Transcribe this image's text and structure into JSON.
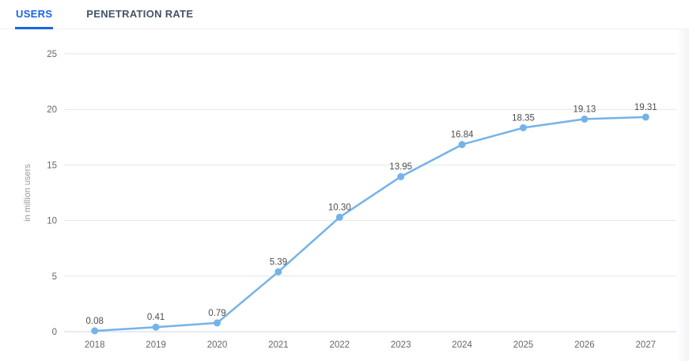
{
  "tabs": [
    {
      "label": "USERS",
      "active": true
    },
    {
      "label": "PENETRATION RATE",
      "active": false
    }
  ],
  "colors": {
    "active_tab": "#1a64e6",
    "inactive_tab": "#445468",
    "line": "#74b3ea",
    "marker": "#74b3ea",
    "gridline": "#e6e6e6",
    "zero_axis_line": "#ccd6eb",
    "tick_label": "#666666",
    "data_label": "#4d4d4d",
    "axis_title": "#999999"
  },
  "chart_data": {
    "type": "line",
    "title": "",
    "xlabel": "",
    "ylabel": "in million users",
    "x": [
      "2018",
      "2019",
      "2020",
      "2021",
      "2022",
      "2023",
      "2024",
      "2025",
      "2026",
      "2027"
    ],
    "values": [
      0.08,
      0.41,
      0.79,
      5.39,
      10.3,
      13.95,
      16.84,
      18.35,
      19.13,
      19.31
    ],
    "data_labels": [
      "0.08",
      "0.41",
      "0.79",
      "5.39",
      "10.30",
      "13.95",
      "16.84",
      "18.35",
      "19.13",
      "19.31"
    ],
    "yticks": [
      0,
      5,
      10,
      15,
      20,
      25
    ],
    "ylim": [
      0,
      25
    ],
    "grid": true,
    "legend": "none",
    "marker": "circle"
  }
}
